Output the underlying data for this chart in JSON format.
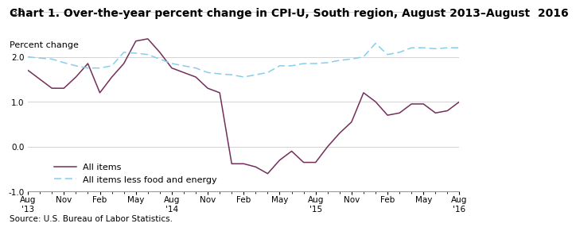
{
  "title": "Chart 1. Over-the-year percent change in CPI-U, South region, August 2013–August  2016",
  "ylabel": "Percent change",
  "source": "Source: U.S. Bureau of Labor Statistics.",
  "ylim": [
    -1.0,
    3.0
  ],
  "yticks": [
    -1.0,
    0.0,
    1.0,
    2.0,
    3.0
  ],
  "x_labels": [
    "Aug\n'13",
    "Nov",
    "Feb",
    "May",
    "Aug\n'14",
    "Nov",
    "Feb",
    "May",
    "Aug\n'15",
    "Nov",
    "Feb",
    "May",
    "Aug\n'16"
  ],
  "x_positions": [
    0,
    3,
    6,
    9,
    12,
    15,
    18,
    21,
    24,
    27,
    30,
    33,
    36
  ],
  "all_items_x": [
    0,
    1,
    2,
    3,
    4,
    5,
    6,
    7,
    8,
    9,
    10,
    11,
    12,
    13,
    14,
    15,
    16,
    17,
    18,
    19,
    20,
    21,
    22,
    23,
    24,
    25,
    26,
    27,
    28,
    29,
    30,
    31,
    32,
    33,
    34,
    35,
    36
  ],
  "all_items_y": [
    1.7,
    1.5,
    1.3,
    1.3,
    1.55,
    1.85,
    1.2,
    1.55,
    1.85,
    2.35,
    2.4,
    2.1,
    1.75,
    1.65,
    1.55,
    1.3,
    1.2,
    -0.38,
    -0.38,
    -0.45,
    -0.6,
    -0.3,
    -0.1,
    -0.35,
    -0.35,
    0.0,
    0.3,
    0.55,
    1.2,
    1.0,
    0.7,
    0.75,
    0.95,
    0.95,
    0.75,
    0.8,
    1.0
  ],
  "core_items_x": [
    0,
    1,
    2,
    3,
    4,
    5,
    6,
    7,
    8,
    9,
    10,
    11,
    12,
    13,
    14,
    15,
    16,
    17,
    18,
    19,
    20,
    21,
    22,
    23,
    24,
    25,
    26,
    27,
    28,
    29,
    30,
    31,
    32,
    33,
    34,
    35,
    36
  ],
  "core_items_y": [
    2.0,
    1.97,
    1.95,
    1.87,
    1.8,
    1.75,
    1.75,
    1.8,
    2.1,
    2.08,
    2.05,
    1.95,
    1.85,
    1.8,
    1.75,
    1.65,
    1.62,
    1.6,
    1.55,
    1.6,
    1.65,
    1.8,
    1.8,
    1.85,
    1.85,
    1.87,
    1.92,
    1.95,
    2.0,
    2.3,
    2.05,
    2.1,
    2.2,
    2.2,
    2.18,
    2.2,
    2.2
  ],
  "all_items_color": "#722F5A",
  "core_items_color": "#87CEEB",
  "title_fontsize": 10,
  "ylabel_fontsize": 8,
  "tick_fontsize": 7.5,
  "source_fontsize": 7.5,
  "legend_fontsize": 8
}
